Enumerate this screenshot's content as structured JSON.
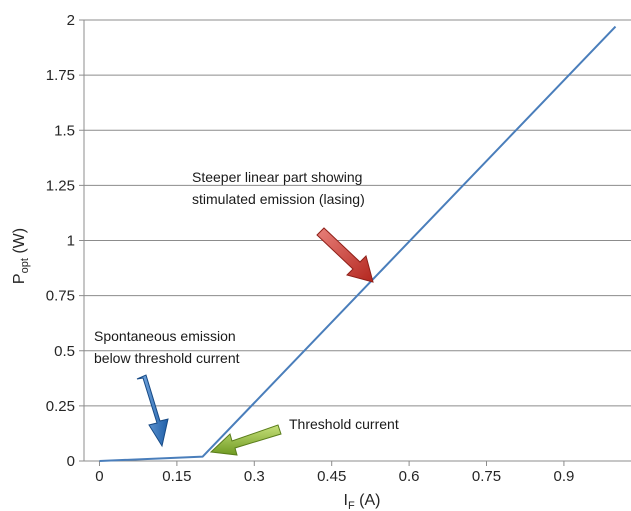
{
  "chart_data": {
    "type": "line",
    "xlabel": {
      "main": "I",
      "sub": "F",
      "unit": " (A)"
    },
    "ylabel": {
      "main": "P",
      "sub": "opt",
      "unit": " (W)"
    },
    "xlim": [
      -0.03,
      1.03
    ],
    "ylim": [
      0,
      2
    ],
    "x_ticks": [
      "0",
      "0.15",
      "0.3",
      "0.45",
      "0.6",
      "0.75",
      "0.9"
    ],
    "y_ticks": [
      "0",
      "0.25",
      "0.5",
      "0.75",
      "1",
      "1.25",
      "1.5",
      "1.75",
      "2"
    ],
    "grid": "horizontal",
    "series": [
      {
        "color": "#4a7ebb",
        "x": [
          0,
          0.2,
          1.0
        ],
        "y": [
          0,
          0.02,
          1.97
        ]
      }
    ],
    "annotations": [
      {
        "lines": [
          "Steeper linear part showing",
          "stimulated emission (lasing)"
        ],
        "arrow_color": "#c0392b"
      },
      {
        "lines": [
          "Spontaneous emission",
          "below threshold current"
        ],
        "arrow_color": "#2e74b5"
      },
      {
        "lines": [
          "Threshold current"
        ],
        "arrow_color": "#8fbf3a"
      }
    ]
  }
}
